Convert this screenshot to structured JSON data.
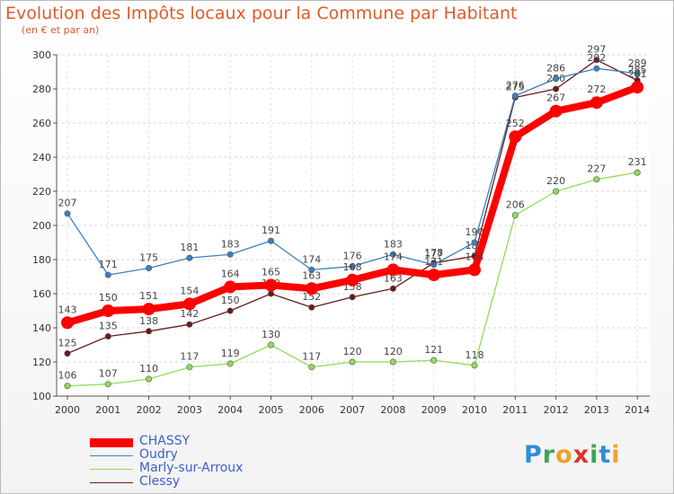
{
  "title": "Evolution des Impôts locaux pour la Commune par Habitant",
  "subtitle": "(en € et par an)",
  "chart_data": {
    "type": "line",
    "x": [
      "2000",
      "2001",
      "2002",
      "2003",
      "2004",
      "2005",
      "2006",
      "2007",
      "2008",
      "2009",
      "2010",
      "2011",
      "2012",
      "2013",
      "2014"
    ],
    "ylim": [
      100,
      300
    ],
    "yticks": [
      100,
      120,
      140,
      160,
      180,
      200,
      220,
      240,
      260,
      280,
      300
    ],
    "grid": true,
    "series": [
      {
        "name": "Clessy",
        "color": "#6b1a1a",
        "values": [
          125,
          135,
          138,
          142,
          150,
          160,
          152,
          158,
          163,
          178,
          182,
          275,
          280,
          297,
          285
        ]
      },
      {
        "name": "Marly-sur-Arroux",
        "color": "#8fdc5a",
        "values": [
          106,
          107,
          110,
          117,
          119,
          130,
          117,
          120,
          120,
          121,
          118,
          206,
          220,
          227,
          231
        ]
      },
      {
        "name": "Oudry",
        "color": "#3a80c0",
        "values": [
          207,
          171,
          175,
          181,
          183,
          191,
          174,
          176,
          183,
          177,
          190,
          276,
          286,
          292,
          289
        ]
      },
      {
        "name": "CHASSY",
        "color": "#ff0000",
        "values": [
          143,
          150,
          151,
          154,
          164,
          165,
          163,
          168,
          174,
          171,
          174,
          252,
          267,
          272,
          281
        ]
      }
    ]
  },
  "legend": [
    "CHASSY",
    "Oudry",
    "Marly-sur-Arroux",
    "Clessy"
  ],
  "logo": {
    "p": "P",
    "r": "r",
    "o": "o",
    "x": "x",
    "i": "i",
    "t": "t",
    "i2": "i"
  }
}
